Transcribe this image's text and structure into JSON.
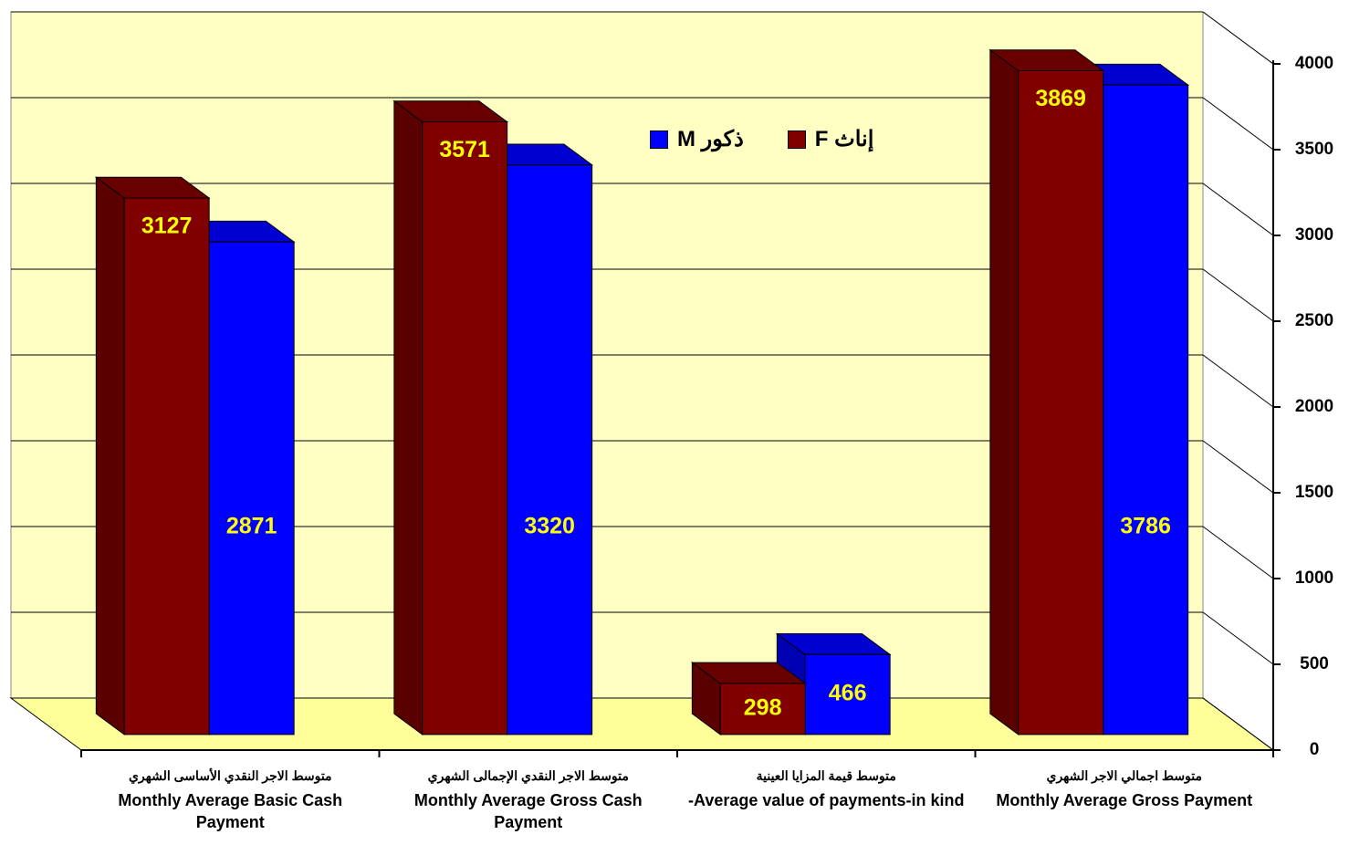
{
  "chart_data": {
    "type": "bar3d",
    "categories": [
      [
        "متوسط الاجر النقدي الأساسى الشهري",
        "Monthly Average Basic Cash Payment"
      ],
      [
        "متوسط الاجر النقدي الإجمالى الشهري",
        "Monthly Average Gross Cash Payment"
      ],
      [
        "متوسط قيمة المزايا العينية",
        "-Average value of payments-in kind"
      ],
      [
        "متوسط اجمالي الاجر الشهري",
        "Monthly Average Gross Payment"
      ]
    ],
    "series": [
      {
        "name": "إناث F",
        "color": "#800000",
        "values": [
          3127,
          3571,
          298,
          3869
        ]
      },
      {
        "name": "ذكور M",
        "color": "#0000ff",
        "values": [
          2871,
          3320,
          466,
          3786
        ]
      }
    ],
    "ylim": [
      0,
      4000
    ],
    "yticks": [
      0,
      500,
      1000,
      1500,
      2000,
      2500,
      3000,
      3500,
      4000
    ],
    "grid": true,
    "legend": "top"
  }
}
